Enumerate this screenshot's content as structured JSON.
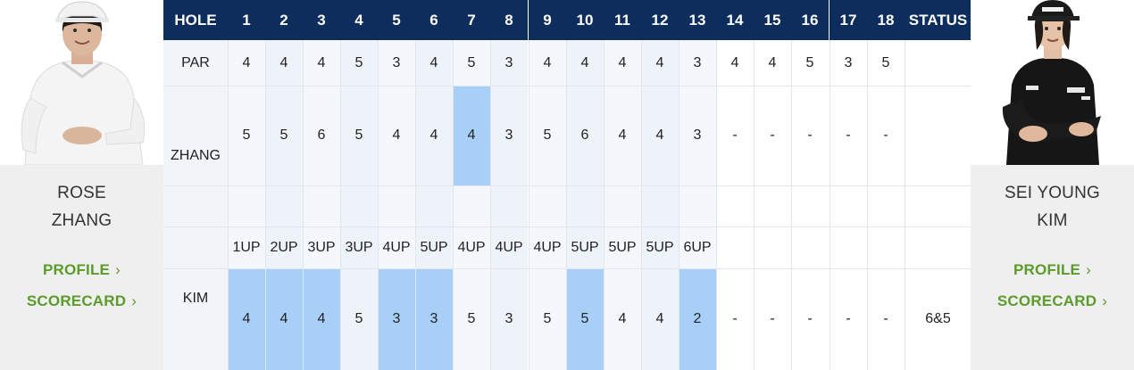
{
  "header": {
    "hole_label": "HOLE",
    "holes": [
      "1",
      "2",
      "3",
      "4",
      "5",
      "6",
      "7",
      "8",
      "9",
      "10",
      "11",
      "12",
      "13",
      "14",
      "15",
      "16",
      "17",
      "18"
    ],
    "status_label": "STATUS"
  },
  "par": {
    "label": "PAR",
    "values": [
      "4",
      "4",
      "4",
      "5",
      "3",
      "4",
      "5",
      "3",
      "4",
      "4",
      "4",
      "4",
      "3",
      "4",
      "4",
      "5",
      "3",
      "5"
    ]
  },
  "zhang": {
    "label": "ZHANG",
    "scores": [
      "5",
      "5",
      "6",
      "5",
      "4",
      "4",
      "4",
      "3",
      "5",
      "6",
      "4",
      "4",
      "3",
      "-",
      "-",
      "-",
      "-",
      "-"
    ],
    "highlight_holes": [
      7
    ]
  },
  "kim": {
    "label": "KIM",
    "scores": [
      "4",
      "4",
      "4",
      "5",
      "3",
      "3",
      "5",
      "3",
      "5",
      "5",
      "4",
      "4",
      "2",
      "-",
      "-",
      "-",
      "-",
      "-"
    ],
    "highlight_holes": [
      1,
      2,
      3,
      5,
      6,
      10,
      13
    ]
  },
  "match_status": [
    "1UP",
    "2UP",
    "3UP",
    "3UP",
    "4UP",
    "5UP",
    "4UP",
    "4UP",
    "4UP",
    "5UP",
    "5UP",
    "5UP",
    "6UP",
    "",
    "",
    "",
    "",
    ""
  ],
  "final_status": "6&5",
  "players": {
    "left": {
      "name_line1": "ROSE",
      "name_line2": "ZHANG",
      "profile": "PROFILE",
      "scorecard": "SCORECARD"
    },
    "right": {
      "name_line1": "SEI YOUNG",
      "name_line2": "KIM",
      "profile": "PROFILE",
      "scorecard": "SCORECARD"
    }
  },
  "colors": {
    "header_bg": "#0d2d5c",
    "highlight": "#a8cff7",
    "link": "#5b9b2b",
    "plate": "#efefef"
  }
}
